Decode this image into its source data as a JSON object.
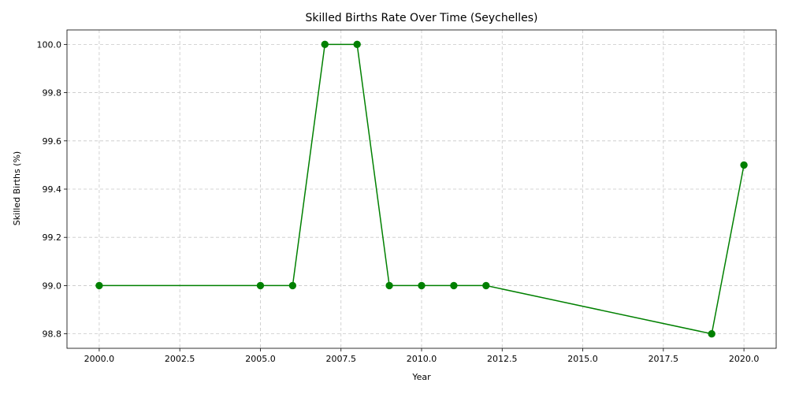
{
  "chart_data": {
    "type": "line",
    "title": "Skilled Births Rate Over Time (Seychelles)",
    "xlabel": "Year",
    "ylabel": "Skilled Births (%)",
    "x": [
      2000,
      2005,
      2006,
      2007,
      2008,
      2009,
      2010,
      2011,
      2012,
      2019,
      2020
    ],
    "series": [
      {
        "values": [
          99.0,
          99.0,
          99.0,
          100.0,
          100.0,
          99.0,
          99.0,
          99.0,
          99.0,
          98.8,
          99.5
        ]
      }
    ],
    "xlim": [
      1999.0,
      2021.0
    ],
    "ylim": [
      98.74,
      100.06
    ],
    "xticks": [
      "2000.0",
      "2002.5",
      "2005.0",
      "2007.5",
      "2010.0",
      "2012.5",
      "2015.0",
      "2017.5",
      "2020.0"
    ],
    "yticks": [
      "98.8",
      "99.0",
      "99.2",
      "99.4",
      "99.6",
      "99.8",
      "100.0"
    ],
    "grid": true,
    "colors": {
      "line": "#008000",
      "marker": "#008000",
      "grid": "#c8c8c8",
      "axis": "#000000"
    }
  }
}
